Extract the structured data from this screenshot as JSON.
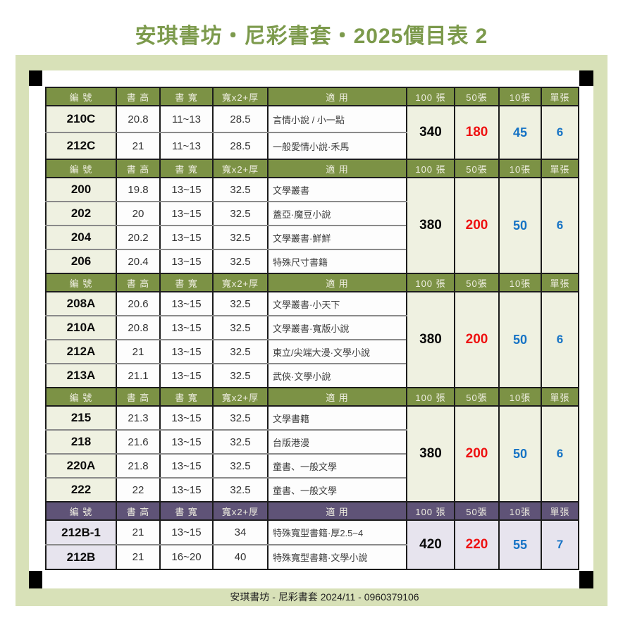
{
  "page": {
    "title": "安琪書坊・尼彩書套・2025價目表 2",
    "footer": "安琪書坊 - 尼彩書套 2024/11 - 0960379106"
  },
  "colors": {
    "title_green": "#7c9a4c",
    "band_green": "#d8e1b8",
    "header_olive": "#7c9245",
    "header_purple": "#5f5377",
    "tint_green": "#eff1e1",
    "tint_purple": "#e7e4ee",
    "price_red": "#ee1111",
    "price_blue": "#1673c5"
  },
  "table": {
    "columns": [
      "編 號",
      "書 高",
      "書 寬",
      "寬x2+厚",
      "適 用",
      "100 張",
      "50張",
      "10張",
      "單張"
    ],
    "sections": [
      {
        "theme": "green",
        "rows": [
          {
            "code": "210C",
            "book_height": "20.8",
            "book_width": "11~13",
            "w2t": "28.5",
            "use": "言情小說 / 小一點"
          },
          {
            "code": "212C",
            "book_height": "21",
            "book_width": "11~13",
            "w2t": "28.5",
            "use": "一般愛情小說·禾馬"
          }
        ],
        "prices": {
          "p100": "340",
          "p50": "180",
          "p10": "45",
          "p1": "6"
        }
      },
      {
        "theme": "green",
        "rows": [
          {
            "code": "200",
            "book_height": "19.8",
            "book_width": "13~15",
            "w2t": "32.5",
            "use": "文學叢書"
          },
          {
            "code": "202",
            "book_height": "20",
            "book_width": "13~15",
            "w2t": "32.5",
            "use": "蓋亞·魔豆小說"
          },
          {
            "code": "204",
            "book_height": "20.2",
            "book_width": "13~15",
            "w2t": "32.5",
            "use": "文學叢書·鮮鮮"
          },
          {
            "code": "206",
            "book_height": "20.4",
            "book_width": "13~15",
            "w2t": "32.5",
            "use": "特殊尺寸書籍"
          }
        ],
        "prices": {
          "p100": "380",
          "p50": "200",
          "p10": "50",
          "p1": "6"
        }
      },
      {
        "theme": "green",
        "rows": [
          {
            "code": "208A",
            "book_height": "20.6",
            "book_width": "13~15",
            "w2t": "32.5",
            "use": "文學叢書·小天下"
          },
          {
            "code": "210A",
            "book_height": "20.8",
            "book_width": "13~15",
            "w2t": "32.5",
            "use": "文學叢書·寬版小說"
          },
          {
            "code": "212A",
            "book_height": "21",
            "book_width": "13~15",
            "w2t": "32.5",
            "use": "東立/尖端大漫·文學小說"
          },
          {
            "code": "213A",
            "book_height": "21.1",
            "book_width": "13~15",
            "w2t": "32.5",
            "use": "武俠·文學小說"
          }
        ],
        "prices": {
          "p100": "380",
          "p50": "200",
          "p10": "50",
          "p1": "6"
        }
      },
      {
        "theme": "green",
        "rows": [
          {
            "code": "215",
            "book_height": "21.3",
            "book_width": "13~15",
            "w2t": "32.5",
            "use": "文學書籍"
          },
          {
            "code": "218",
            "book_height": "21.6",
            "book_width": "13~15",
            "w2t": "32.5",
            "use": "台版港漫"
          },
          {
            "code": "220A",
            "book_height": "21.8",
            "book_width": "13~15",
            "w2t": "32.5",
            "use": "童書、一般文學"
          },
          {
            "code": "222",
            "book_height": "22",
            "book_width": "13~15",
            "w2t": "32.5",
            "use": "童書、一般文學"
          }
        ],
        "prices": {
          "p100": "380",
          "p50": "200",
          "p10": "50",
          "p1": "6"
        }
      },
      {
        "theme": "purple",
        "rows": [
          {
            "code": "212B-1",
            "book_height": "21",
            "book_width": "13~15",
            "w2t": "34",
            "use": "特殊寬型書籍·厚2.5~4"
          },
          {
            "code": "212B",
            "book_height": "21",
            "book_width": "16~20",
            "w2t": "40",
            "use": "特殊寬型書籍·文學小說"
          }
        ],
        "prices": {
          "p100": "420",
          "p50": "220",
          "p10": "55",
          "p1": "7"
        }
      }
    ]
  }
}
